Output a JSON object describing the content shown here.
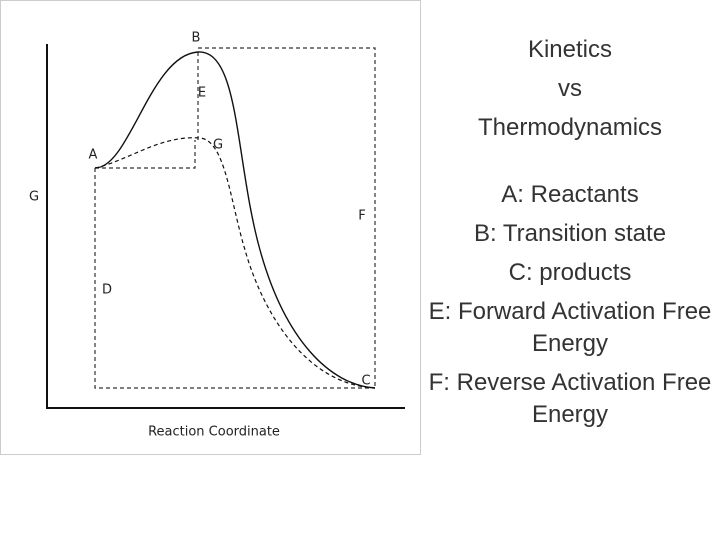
{
  "diagram": {
    "axis_labels": {
      "y": "G",
      "x": "Reaction Coordinate"
    },
    "points": {
      "a": "A",
      "b": "B",
      "c": "C",
      "d": "D",
      "e": "E",
      "f": "F",
      "g": "G"
    }
  },
  "text": {
    "title": [
      "Kinetics",
      "vs",
      "Thermodynamics"
    ],
    "items": [
      "A: Reactants",
      "B: Transition state",
      "C: products",
      "E: Forward Activation Free Energy",
      "F: Reverse Activation Free Energy"
    ]
  }
}
